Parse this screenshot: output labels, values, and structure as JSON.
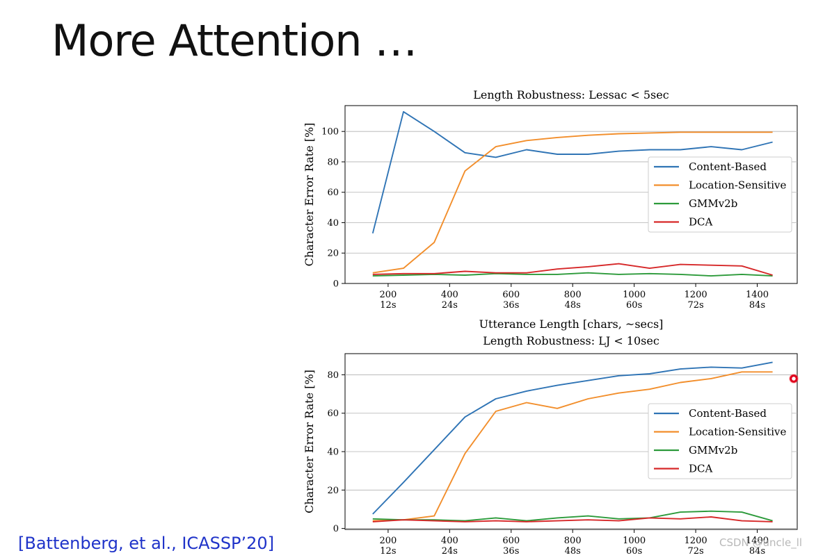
{
  "slide": {
    "title": "More Attention …",
    "citation": "[Battenberg, et al., ICASSP’20]",
    "watermark": "CSDN @uncle_ll"
  },
  "chart_data": [
    {
      "type": "line",
      "title": "Length Robustness: Lessac < 5sec",
      "xlabel": "Utterance Length [chars, ~secs]",
      "ylabel": "Character Error Rate [%]",
      "xlim": [
        60,
        1530
      ],
      "ylim": [
        0,
        117
      ],
      "xticks": [
        200,
        400,
        600,
        800,
        1000,
        1200,
        1400
      ],
      "xtick_labels": [
        "200",
        "400",
        "600",
        "800",
        "1000",
        "1200",
        "1400"
      ],
      "xtick_sublabels": [
        "12s",
        "24s",
        "36s",
        "48s",
        "60s",
        "72s",
        "84s"
      ],
      "yticks": [
        0,
        20,
        40,
        60,
        80,
        100
      ],
      "grid": "horizontal",
      "legend_position": "center-right",
      "x": [
        150,
        250,
        350,
        450,
        550,
        650,
        750,
        850,
        950,
        1050,
        1150,
        1250,
        1350,
        1450
      ],
      "series": [
        {
          "name": "Content-Based",
          "color": "#2f74b5",
          "values": [
            33,
            113,
            100,
            86,
            83,
            88,
            85,
            85,
            87,
            88,
            88,
            90,
            88,
            93
          ]
        },
        {
          "name": "Location-Sensitive",
          "color": "#f28e2b",
          "values": [
            7,
            10,
            27,
            74,
            90,
            94,
            96,
            97.5,
            98.5,
            99,
            99.5,
            99.5,
            99.5,
            99.5
          ]
        },
        {
          "name": "GMMv2b",
          "color": "#2c9a3a",
          "values": [
            5,
            5.5,
            6,
            5.5,
            6.5,
            6,
            6,
            7,
            6,
            6.5,
            6,
            5,
            6,
            5
          ]
        },
        {
          "name": "DCA",
          "color": "#d62728",
          "values": [
            6,
            6.5,
            6.5,
            8,
            7,
            7,
            9.5,
            11,
            13,
            10,
            12.5,
            12,
            11.5,
            5.5
          ]
        }
      ]
    },
    {
      "type": "line",
      "title": "Length Robustness: LJ < 10sec",
      "xlabel": "",
      "ylabel": "Character Error Rate [%]",
      "xlim": [
        60,
        1530
      ],
      "ylim": [
        -0.5,
        91
      ],
      "xticks": [
        200,
        400,
        600,
        800,
        1000,
        1200,
        1400
      ],
      "xtick_labels": [
        "200",
        "400",
        "600",
        "800",
        "1000",
        "1200",
        "1400"
      ],
      "xtick_sublabels": [
        "12s",
        "24s",
        "36s",
        "48s",
        "60s",
        "72s",
        "84s"
      ],
      "yticks": [
        0,
        20,
        40,
        60,
        80
      ],
      "grid": "horizontal",
      "legend_position": "center-right",
      "x": [
        150,
        250,
        350,
        450,
        550,
        650,
        750,
        850,
        950,
        1050,
        1150,
        1250,
        1350,
        1450
      ],
      "series": [
        {
          "name": "Content-Based",
          "color": "#2f74b5",
          "values": [
            7.5,
            24,
            41,
            58,
            67.5,
            71.5,
            74.5,
            77,
            79.5,
            80.5,
            83,
            84,
            83.5,
            86.5
          ]
        },
        {
          "name": "Location-Sensitive",
          "color": "#f28e2b",
          "values": [
            4,
            4.5,
            6.5,
            39,
            61,
            65.5,
            62.5,
            67.5,
            70.5,
            72.5,
            76,
            78,
            81.5,
            81.5
          ]
        },
        {
          "name": "GMMv2b",
          "color": "#2c9a3a",
          "values": [
            5,
            4.5,
            4.5,
            4,
            5.5,
            4,
            5.5,
            6.5,
            5,
            5.5,
            8.5,
            9,
            8.5,
            4
          ]
        },
        {
          "name": "DCA",
          "color": "#d62728",
          "values": [
            3.5,
            4.5,
            4,
            3.5,
            4,
            3.5,
            4,
            4.5,
            4,
            5.5,
            5,
            6,
            4,
            3.5
          ]
        }
      ]
    }
  ]
}
